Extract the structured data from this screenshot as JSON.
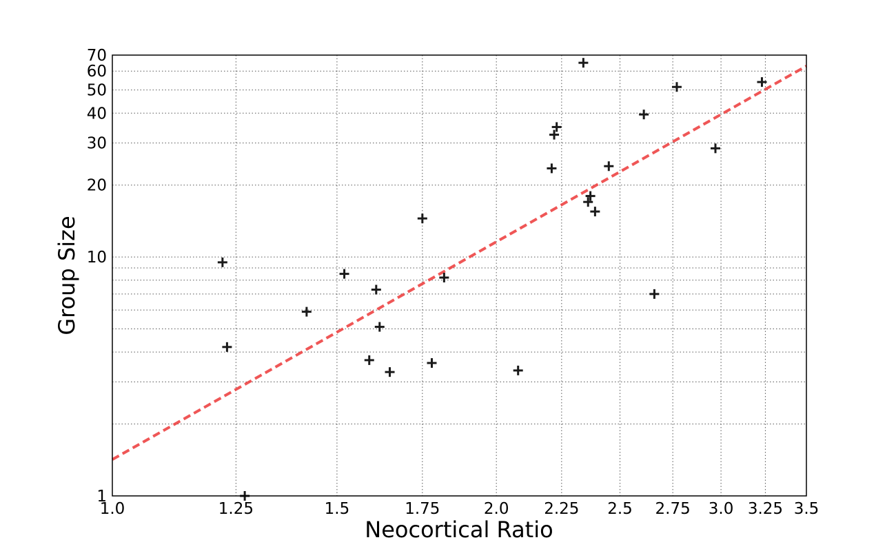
{
  "chart_data": {
    "type": "scatter",
    "title": "",
    "xlabel": "Neocortical Ratio",
    "ylabel": "Group Size",
    "x_scale": "log",
    "y_scale": "log",
    "xlim": [
      1.0,
      3.5
    ],
    "ylim": [
      1,
      70
    ],
    "grid": true,
    "x_ticks": [
      "1.0",
      "1.25",
      "1.5",
      "1.75",
      "2.0",
      "2.25",
      "2.5",
      "2.75",
      "3.0",
      "3.25",
      "3.5"
    ],
    "x_tick_values": [
      1.0,
      1.25,
      1.5,
      1.75,
      2.0,
      2.25,
      2.5,
      2.75,
      3.0,
      3.25,
      3.5
    ],
    "y_ticks": [
      "1",
      "10",
      "20",
      "30",
      "40",
      "50",
      "60",
      "70"
    ],
    "y_tick_values": [
      1,
      10,
      20,
      30,
      40,
      50,
      60,
      70
    ],
    "y_minor_grid": [
      2,
      3,
      4,
      5,
      6,
      7,
      8,
      9
    ],
    "marker_color": "#1a1a1a",
    "fit_color": "#ee4444",
    "points": [
      {
        "x": 1.22,
        "y": 9.5
      },
      {
        "x": 1.23,
        "y": 4.2
      },
      {
        "x": 1.27,
        "y": 1.0
      },
      {
        "x": 1.42,
        "y": 5.9
      },
      {
        "x": 1.52,
        "y": 8.5
      },
      {
        "x": 1.59,
        "y": 3.7
      },
      {
        "x": 1.61,
        "y": 7.3
      },
      {
        "x": 1.62,
        "y": 5.1
      },
      {
        "x": 1.65,
        "y": 3.3
      },
      {
        "x": 1.75,
        "y": 14.5
      },
      {
        "x": 1.78,
        "y": 3.6
      },
      {
        "x": 1.82,
        "y": 8.2
      },
      {
        "x": 2.08,
        "y": 3.35
      },
      {
        "x": 2.21,
        "y": 23.5
      },
      {
        "x": 2.22,
        "y": 32.5
      },
      {
        "x": 2.23,
        "y": 35.0
      },
      {
        "x": 2.34,
        "y": 65.0
      },
      {
        "x": 2.36,
        "y": 17.0
      },
      {
        "x": 2.37,
        "y": 18.0
      },
      {
        "x": 2.39,
        "y": 15.5
      },
      {
        "x": 2.45,
        "y": 24.0
      },
      {
        "x": 2.61,
        "y": 39.5
      },
      {
        "x": 2.66,
        "y": 7.0
      },
      {
        "x": 2.77,
        "y": 51.5
      },
      {
        "x": 2.97,
        "y": 28.5
      },
      {
        "x": 3.23,
        "y": 54.0
      }
    ],
    "fit_line": {
      "x": [
        1.0,
        3.5
      ],
      "y": [
        1.42,
        63.0
      ]
    }
  }
}
